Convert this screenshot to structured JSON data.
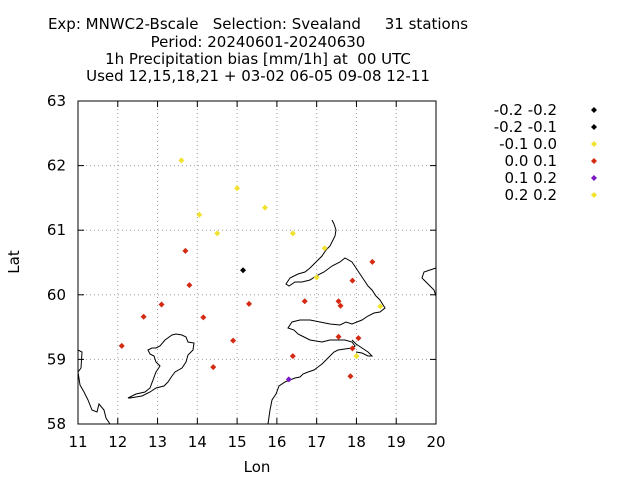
{
  "title_lines": [
    "Exp: MNWC2-Bscale   Selection: Svealand     31 stations",
    "Period: 20240601-20240630",
    "1h Precipitation bias [mm/1h] at  00 UTC",
    "Used 12,15,18,21 + 03-02 06-05 09-08 12-11"
  ],
  "chart_data": {
    "type": "scatter",
    "xlabel": "Lon",
    "ylabel": "Lat",
    "xlim": [
      11,
      20
    ],
    "ylim": [
      58,
      63
    ],
    "xticks": [
      11,
      12,
      13,
      14,
      15,
      16,
      17,
      18,
      19,
      20
    ],
    "yticks": [
      58,
      59,
      60,
      61,
      62,
      63
    ],
    "grid": true,
    "legend_position": "right",
    "background_map": "coastline",
    "legend": [
      {
        "label": "-0.2 -0.2",
        "color": "#000000"
      },
      {
        "label": "-0.2 -0.1",
        "color": "#000000"
      },
      {
        "label": "-0.1 0.0",
        "color": "#f2e22e"
      },
      {
        "label": "0.0 0.1",
        "color": "#d42a12"
      },
      {
        "label": "0.1 0.2",
        "color": "#7a18c8"
      },
      {
        "label": "0.2 0.2",
        "color": "#f2e22e"
      }
    ],
    "series": [
      {
        "class": "-0.2 -0.1",
        "color": "#000000",
        "points": [
          [
            15.15,
            60.38
          ]
        ]
      },
      {
        "class": "-0.1 0.0",
        "color": "#f2e22e",
        "points": [
          [
            13.6,
            62.08
          ],
          [
            15.0,
            61.65
          ],
          [
            15.7,
            61.35
          ],
          [
            14.05,
            61.24
          ],
          [
            14.5,
            60.95
          ],
          [
            16.4,
            60.95
          ],
          [
            17.2,
            60.72
          ],
          [
            17.0,
            60.27
          ],
          [
            18.6,
            59.82
          ],
          [
            18.0,
            59.05
          ]
        ]
      },
      {
        "class": "0.0 0.1",
        "color": "#d42a12",
        "points": [
          [
            13.7,
            60.68
          ],
          [
            13.8,
            60.15
          ],
          [
            13.1,
            59.85
          ],
          [
            12.65,
            59.66
          ],
          [
            14.15,
            59.65
          ],
          [
            15.3,
            59.86
          ],
          [
            16.7,
            59.9
          ],
          [
            17.55,
            59.9
          ],
          [
            17.6,
            59.83
          ],
          [
            17.9,
            60.22
          ],
          [
            18.4,
            60.51
          ],
          [
            17.55,
            59.35
          ],
          [
            18.05,
            59.33
          ],
          [
            17.9,
            59.17
          ],
          [
            16.4,
            59.05
          ],
          [
            14.9,
            59.29
          ],
          [
            14.4,
            58.88
          ],
          [
            12.1,
            59.21
          ],
          [
            17.85,
            58.74
          ]
        ]
      },
      {
        "class": "0.1 0.2",
        "color": "#7a18c8",
        "points": [
          [
            16.3,
            58.69
          ]
        ]
      }
    ]
  }
}
